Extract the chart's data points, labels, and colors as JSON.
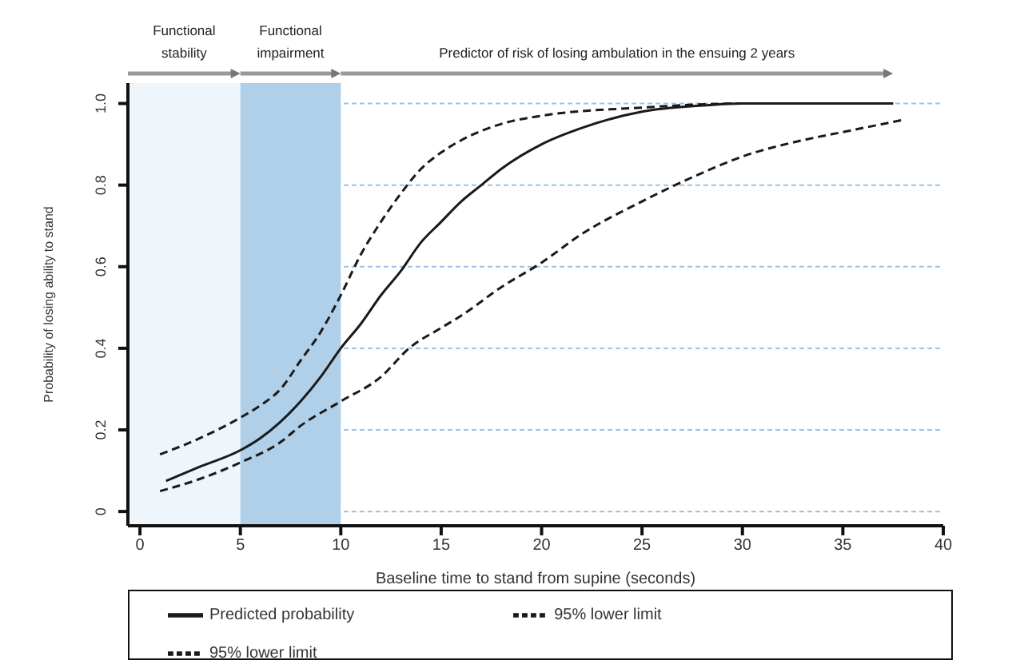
{
  "chart_data": {
    "type": "line",
    "xlabel": "Baseline time to stand from supine (seconds)",
    "ylabel": "Probability of losing ability to stand",
    "xlim": [
      -0.6,
      40
    ],
    "xticks": [
      0,
      5,
      10,
      15,
      20,
      25,
      30,
      35,
      40
    ],
    "ylim": [
      -0.035,
      1.05
    ],
    "yticks": [
      0,
      {
        "value": 0.2,
        "label": "0.2"
      },
      {
        "value": 0.4,
        "label": "0.4"
      },
      {
        "value": 0.6,
        "label": "0.6"
      },
      {
        "value": 0.8,
        "label": "0.8"
      },
      {
        "value": 1,
        "label": "1.0"
      }
    ],
    "grid": "y",
    "legend": "bottom",
    "marker": "none",
    "bands": [
      {
        "axis": "x",
        "from": -0.6,
        "to": 5,
        "label": "Functional stability",
        "color": "#eef5fb"
      },
      {
        "axis": "x",
        "from": 5,
        "to": 10,
        "label": "Functional impairment",
        "color": "#b0cfe8"
      }
    ],
    "annotations": [
      "Predictor of risk of losing ambulation in the ensuing 2 years"
    ],
    "series": [
      {
        "name": "Predicted probability",
        "color": "#1a1a1a",
        "line_style": "solid",
        "x": [
          1.3,
          3,
          5,
          6,
          7,
          8,
          9,
          10,
          11,
          12,
          13,
          14,
          15,
          16,
          17,
          18,
          20,
          22,
          25,
          28,
          30,
          37.5
        ],
        "values": [
          0.075,
          0.11,
          0.15,
          0.18,
          0.22,
          0.27,
          0.33,
          0.4,
          0.46,
          0.53,
          0.59,
          0.66,
          0.71,
          0.76,
          0.8,
          0.84,
          0.9,
          0.94,
          0.98,
          0.995,
          1,
          1
        ]
      },
      {
        "name": "95% lower limit",
        "color": "#1a1a1a",
        "line_style": "dashed",
        "x": [
          1,
          3,
          5,
          6,
          7,
          8,
          9,
          10,
          11,
          12,
          13,
          14,
          15,
          16,
          18,
          20,
          25,
          30,
          37.5
        ],
        "values": [
          0.14,
          0.18,
          0.23,
          0.26,
          0.3,
          0.37,
          0.44,
          0.53,
          0.63,
          0.71,
          0.78,
          0.84,
          0.88,
          0.91,
          0.95,
          0.97,
          0.99,
          1,
          1
        ]
      },
      {
        "name": "95% lower limit",
        "color": "#1a1a1a",
        "line_style": "dashed",
        "x": [
          1,
          3,
          5,
          7,
          8,
          10,
          12,
          13.4,
          15,
          16,
          18,
          20,
          22,
          25,
          28,
          30,
          33,
          35,
          38
        ],
        "values": [
          0.05,
          0.08,
          0.12,
          0.17,
          0.21,
          0.27,
          0.33,
          0.4,
          0.45,
          0.48,
          0.55,
          0.61,
          0.68,
          0.76,
          0.83,
          0.87,
          0.91,
          0.93,
          0.96
        ]
      }
    ]
  }
}
